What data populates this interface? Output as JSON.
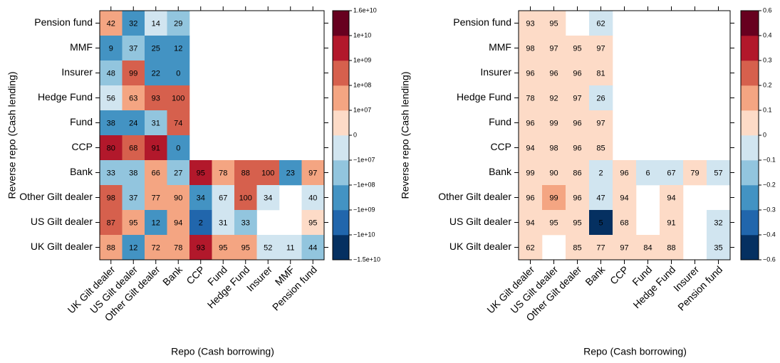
{
  "chart_data": [
    {
      "type": "heatmap",
      "xlabel": "Repo (Cash borrowing)",
      "ylabel": "Reverse repo (Cash lending)",
      "categories": [
        "UK Gilt dealer",
        "US Gilt dealer",
        "Other Gilt dealer",
        "Bank",
        "CCP",
        "Fund",
        "Hedge Fund",
        "Insurer",
        "MMF",
        "Pension fund"
      ],
      "rows": [
        "Pension fund",
        "MMF",
        "Insurer",
        "Hedge Fund",
        "Fund",
        "CCP",
        "Bank",
        "Other Gilt dealer",
        "US Gilt dealer",
        "UK Gilt dealer"
      ],
      "values": [
        [
          42,
          32,
          14,
          29,
          null,
          null,
          null,
          null,
          null,
          null
        ],
        [
          9,
          37,
          25,
          12,
          null,
          null,
          null,
          null,
          null,
          null
        ],
        [
          48,
          99,
          22,
          0,
          null,
          null,
          null,
          null,
          null,
          null
        ],
        [
          56,
          63,
          93,
          100,
          null,
          null,
          null,
          null,
          null,
          null
        ],
        [
          38,
          24,
          31,
          74,
          null,
          null,
          null,
          null,
          null,
          null
        ],
        [
          80,
          68,
          91,
          0,
          null,
          null,
          null,
          null,
          null,
          null
        ],
        [
          33,
          38,
          66,
          27,
          95,
          78,
          88,
          100,
          23,
          97
        ],
        [
          98,
          37,
          77,
          90,
          34,
          67,
          100,
          34,
          null,
          40
        ],
        [
          87,
          95,
          12,
          94,
          2,
          31,
          33,
          null,
          null,
          95
        ],
        [
          88,
          12,
          72,
          78,
          93,
          95,
          95,
          52,
          11,
          44
        ]
      ],
      "cell_colors": [
        [
          "#f4a582",
          "#4393c3",
          "#d1e5f0",
          "#92c5de",
          null,
          null,
          null,
          null,
          null,
          null
        ],
        [
          "#4393c3",
          "#92c5de",
          "#4393c3",
          "#4393c3",
          null,
          null,
          null,
          null,
          null,
          null
        ],
        [
          "#92c5de",
          "#d6604d",
          "#4393c3",
          "#4393c3",
          null,
          null,
          null,
          null,
          null,
          null
        ],
        [
          "#d1e5f0",
          "#f4a582",
          "#d6604d",
          "#d6604d",
          null,
          null,
          null,
          null,
          null,
          null
        ],
        [
          "#4393c3",
          "#4393c3",
          "#92c5de",
          "#d6604d",
          null,
          null,
          null,
          null,
          null,
          null
        ],
        [
          "#b2182b",
          "#d6604d",
          "#b2182b",
          "#4393c3",
          null,
          null,
          null,
          null,
          null,
          null
        ],
        [
          "#92c5de",
          "#92c5de",
          "#f4a582",
          "#92c5de",
          "#b2182b",
          "#f4a582",
          "#d6604d",
          "#d6604d",
          "#4393c3",
          "#f4a582"
        ],
        [
          "#d6604d",
          "#92c5de",
          "#f4a582",
          "#f4a582",
          "#4393c3",
          "#d1e5f0",
          "#d6604d",
          "#d1e5f0",
          null,
          "#d1e5f0"
        ],
        [
          "#d6604d",
          "#f4a582",
          "#4393c3",
          "#f4a582",
          "#2166ac",
          "#d1e5f0",
          "#92c5de",
          null,
          null,
          "#fddbc7"
        ],
        [
          "#f4a582",
          "#4393c3",
          "#f4a582",
          "#f4a582",
          "#b2182b",
          "#f4a582",
          "#f4a582",
          "#d1e5f0",
          "#d1e5f0",
          "#92c5de"
        ]
      ],
      "colorbar_colors": [
        "#053061",
        "#2166ac",
        "#4393c3",
        "#92c5de",
        "#d1e5f0",
        "#fddbc7",
        "#f4a582",
        "#d6604d",
        "#b2182b",
        "#67001f"
      ],
      "colorbar_ticks": [
        {
          "value": -15000000000,
          "label": "−1.5e+10"
        },
        {
          "value": -10000000000,
          "label": "−1e+10"
        },
        {
          "value": -1000000000,
          "label": "−1e+09"
        },
        {
          "value": -100000000,
          "label": "−1e+08"
        },
        {
          "value": -10000000,
          "label": "−1e+07"
        },
        0,
        {
          "value": 10000000,
          "label": "1e+07"
        },
        {
          "value": 100000000,
          "label": "1e+08"
        },
        {
          "value": 1000000000,
          "label": "1e+09"
        },
        {
          "value": 10000000000,
          "label": "1e+10"
        },
        {
          "value": 16000000000,
          "label": "1.6e+10"
        }
      ]
    },
    {
      "type": "heatmap",
      "xlabel": "Repo (Cash borrowing)",
      "ylabel": "Reverse repo (Cash lending)",
      "categories": [
        "UK Gilt dealer",
        "US Gilt dealer",
        "Other Gilt dealer",
        "Bank",
        "CCP",
        "Fund",
        "Hedge Fund",
        "Insurer",
        "Pension fund"
      ],
      "rows": [
        "Pension fund",
        "MMF",
        "Insurer",
        "Hedge Fund",
        "Fund",
        "CCP",
        "Bank",
        "Other Gilt dealer",
        "US Gilt dealer",
        "UK Gilt dealer"
      ],
      "values": [
        [
          93,
          95,
          null,
          62,
          null,
          null,
          null,
          null,
          null
        ],
        [
          98,
          97,
          95,
          97,
          null,
          null,
          null,
          null,
          null
        ],
        [
          96,
          96,
          96,
          81,
          null,
          null,
          null,
          null,
          null
        ],
        [
          78,
          92,
          97,
          26,
          null,
          null,
          null,
          null,
          null
        ],
        [
          96,
          99,
          96,
          97,
          null,
          null,
          null,
          null,
          null
        ],
        [
          94,
          98,
          96,
          85,
          null,
          null,
          null,
          null,
          null
        ],
        [
          99,
          90,
          86,
          2,
          96,
          6,
          67,
          79,
          57
        ],
        [
          96,
          99,
          96,
          47,
          94,
          null,
          94,
          null,
          null
        ],
        [
          94,
          95,
          95,
          5,
          68,
          null,
          91,
          null,
          32
        ],
        [
          62,
          null,
          85,
          77,
          97,
          84,
          88,
          null,
          35
        ]
      ],
      "cell_colors": [
        [
          "#fddbc7",
          "#fddbc7",
          null,
          "#d1e5f0",
          null,
          null,
          null,
          null,
          null
        ],
        [
          "#fddbc7",
          "#fddbc7",
          "#fddbc7",
          "#fddbc7",
          null,
          null,
          null,
          null,
          null
        ],
        [
          "#fddbc7",
          "#fddbc7",
          "#fddbc7",
          "#fddbc7",
          null,
          null,
          null,
          null,
          null
        ],
        [
          "#fddbc7",
          "#fddbc7",
          "#fddbc7",
          "#d1e5f0",
          null,
          null,
          null,
          null,
          null
        ],
        [
          "#fddbc7",
          "#fddbc7",
          "#fddbc7",
          "#fddbc7",
          null,
          null,
          null,
          null,
          null
        ],
        [
          "#fddbc7",
          "#fddbc7",
          "#fddbc7",
          "#fddbc7",
          null,
          null,
          null,
          null,
          null
        ],
        [
          "#fddbc7",
          "#fddbc7",
          "#fddbc7",
          "#d1e5f0",
          "#fddbc7",
          "#d1e5f0",
          "#d1e5f0",
          "#fddbc7",
          "#d1e5f0"
        ],
        [
          "#fddbc7",
          "#f4a582",
          "#fddbc7",
          "#d1e5f0",
          "#fddbc7",
          null,
          "#fddbc7",
          null,
          null
        ],
        [
          "#fddbc7",
          "#fddbc7",
          "#fddbc7",
          "#053061",
          "#fddbc7",
          null,
          "#fddbc7",
          null,
          "#d1e5f0"
        ],
        [
          "#fddbc7",
          null,
          "#fddbc7",
          "#fddbc7",
          "#fddbc7",
          "#fddbc7",
          "#fddbc7",
          null,
          "#d1e5f0"
        ]
      ],
      "colorbar_colors": [
        "#053061",
        "#2166ac",
        "#4393c3",
        "#92c5de",
        "#d1e5f0",
        "#fddbc7",
        "#f4a582",
        "#d6604d",
        "#b2182b",
        "#67001f"
      ],
      "colorbar_ticks": [
        {
          "value": -0.6,
          "label": "−0.6"
        },
        {
          "value": -0.4,
          "label": "−0.4"
        },
        {
          "value": -0.3,
          "label": "−0.3"
        },
        {
          "value": -0.2,
          "label": "−0.2"
        },
        {
          "value": -0.1,
          "label": "−0.1"
        },
        0,
        0.1,
        0.2,
        0.3,
        0.4,
        0.6
      ]
    }
  ]
}
